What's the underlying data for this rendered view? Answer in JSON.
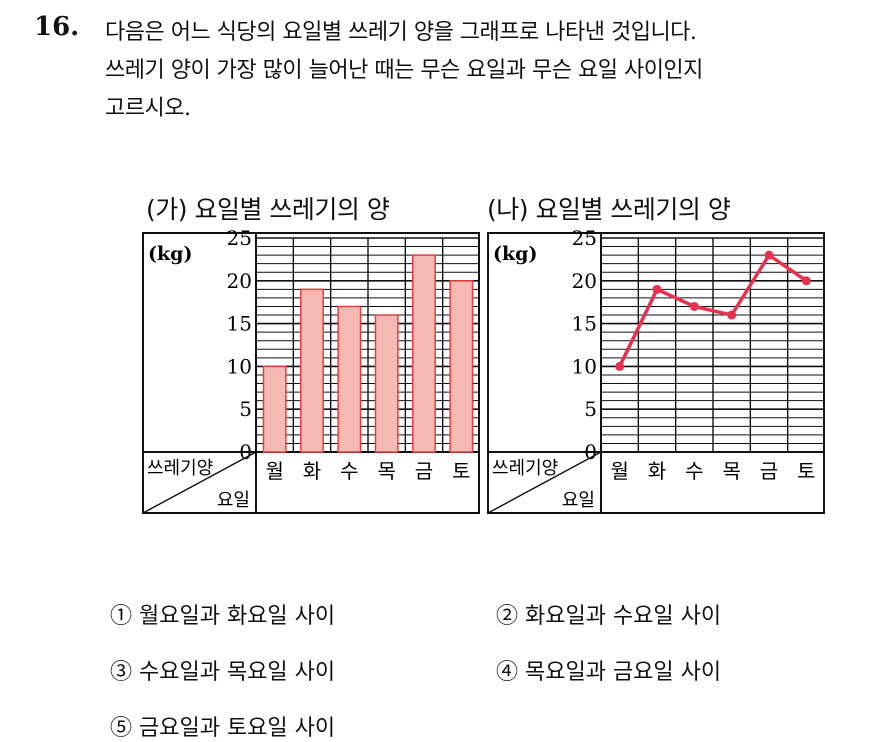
{
  "question": {
    "number": "16.",
    "lines": [
      "다음은 어느 식당의 요일별 쓰레기 양을 그래프로 나타낸 것입니다.",
      "쓰레기 양이 가장 많이 늘어난 때는 무슨 요일과 무슨 요일 사이인지",
      "고르시오."
    ]
  },
  "chart_data": [
    {
      "type": "bar",
      "title": "(가) 요일별 쓰레기의 양",
      "unit": "(kg)",
      "header_top": "쓰레기양",
      "header_bottom": "요일",
      "categories": [
        "월",
        "화",
        "수",
        "목",
        "금",
        "토"
      ],
      "values": [
        10,
        19,
        17,
        16,
        23,
        20
      ],
      "yticks": [
        0,
        5,
        10,
        15,
        20,
        25
      ],
      "ylim": [
        0,
        25
      ],
      "grid": true,
      "color": "#f6b9b4",
      "edge_color": "#e0403f"
    },
    {
      "type": "line",
      "title": "(나) 요일별 쓰레기의 양",
      "unit": "(kg)",
      "header_top": "쓰레기양",
      "header_bottom": "요일",
      "categories": [
        "월",
        "화",
        "수",
        "목",
        "금",
        "토"
      ],
      "values": [
        10,
        19,
        17,
        16,
        23,
        20
      ],
      "yticks": [
        0,
        5,
        10,
        15,
        20,
        25
      ],
      "ylim": [
        0,
        25
      ],
      "grid": true,
      "color": "#e8304f"
    }
  ],
  "options": [
    "① 월요일과 화요일 사이",
    "② 화요일과 수요일 사이",
    "③ 수요일과 목요일 사이",
    "④ 목요일과 금요일 사이",
    "⑤ 금요일과 토요일 사이"
  ]
}
